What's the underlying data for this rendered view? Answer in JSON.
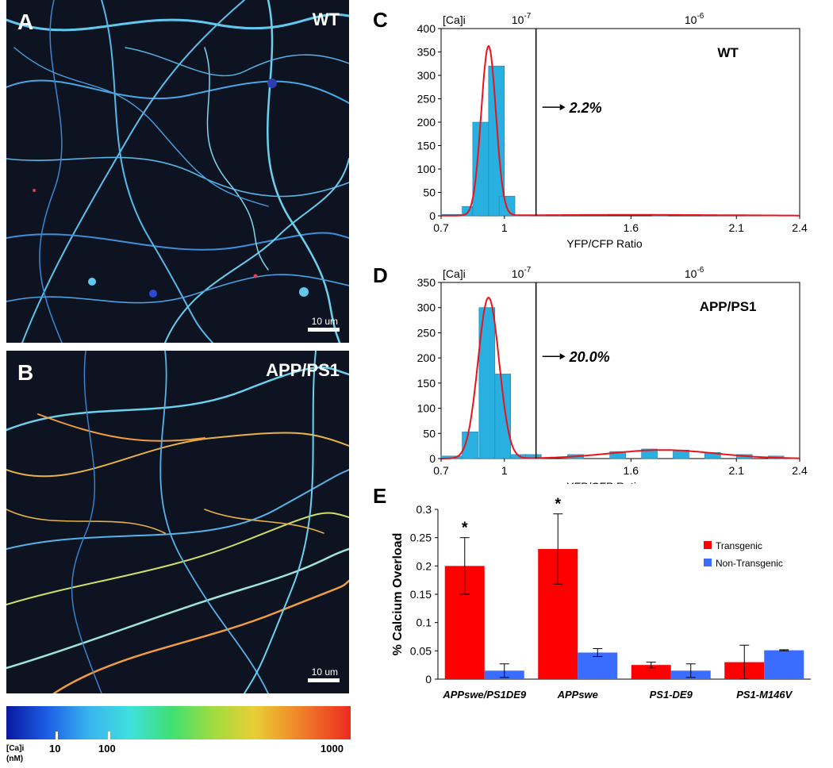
{
  "panels": {
    "a": {
      "letter": "A",
      "tag": "WT",
      "scale": "10 um"
    },
    "b": {
      "letter": "B",
      "tag": "APP/PS1",
      "scale": "10 um"
    },
    "c": {
      "letter": "C"
    },
    "d": {
      "letter": "D"
    },
    "e": {
      "letter": "E"
    }
  },
  "colorbar": {
    "unit_line1": "[Ca]i",
    "unit_line2": "(nM)",
    "ticks": [
      "10",
      "100",
      "1000"
    ]
  },
  "chart_data": [
    {
      "type": "bar",
      "panel": "C",
      "annotation_tag": "WT",
      "xlabel": "YFP/CFP Ratio",
      "top_axis_label": "[Ca]i",
      "top_ticks": [
        {
          "base": "10",
          "exp": "-7",
          "ratio": 1.08
        },
        {
          "base": "10",
          "exp": "-6",
          "ratio": 1.9
        }
      ],
      "xlim": [
        0.7,
        2.4
      ],
      "ylim": [
        0,
        400
      ],
      "xticks": [
        "0.7",
        "1",
        "1.6",
        "2.1",
        "2.4"
      ],
      "xtick_values": [
        0.7,
        1.0,
        1.6,
        2.1,
        2.4
      ],
      "yticks": [
        0,
        50,
        100,
        150,
        200,
        250,
        300,
        350,
        400
      ],
      "bin_width": 0.075,
      "bins": [
        {
          "x0": 0.7,
          "v": 3
        },
        {
          "x0": 0.775,
          "v": 3
        },
        {
          "x0": 0.8,
          "v": 20
        },
        {
          "x0": 0.85,
          "v": 200
        },
        {
          "x0": 0.925,
          "v": 320
        },
        {
          "x0": 0.975,
          "v": 42
        },
        {
          "x0": 1.05,
          "v": 2
        },
        {
          "x0": 1.7,
          "v": 3
        }
      ],
      "threshold": 1.15,
      "arrow_label": "2.2%",
      "curve": [
        {
          "mu": 0.925,
          "sigma": 0.035,
          "amp": 362
        },
        {
          "mu": 1.6,
          "sigma": 0.5,
          "amp": 2
        }
      ]
    },
    {
      "type": "bar",
      "panel": "D",
      "annotation_tag": "APP/PS1",
      "xlabel": "YFP/CFP Ratio",
      "top_axis_label": "[Ca]i",
      "top_ticks": [
        {
          "base": "10",
          "exp": "-7",
          "ratio": 1.08
        },
        {
          "base": "10",
          "exp": "-6",
          "ratio": 1.9
        }
      ],
      "xlim": [
        0.7,
        2.4
      ],
      "ylim": [
        0,
        350
      ],
      "xticks": [
        "0.7",
        "1",
        "1.6",
        "2.1",
        "2.4"
      ],
      "xtick_values": [
        0.7,
        1.0,
        1.6,
        2.1,
        2.4
      ],
      "yticks": [
        0,
        50,
        100,
        150,
        200,
        250,
        300,
        350
      ],
      "bin_width": 0.075,
      "bins": [
        {
          "x0": 0.7,
          "v": 5
        },
        {
          "x0": 0.775,
          "v": 5
        },
        {
          "x0": 0.8,
          "v": 53
        },
        {
          "x0": 0.88,
          "v": 300
        },
        {
          "x0": 0.955,
          "v": 168
        },
        {
          "x0": 1.03,
          "v": 8
        },
        {
          "x0": 1.1,
          "v": 8
        },
        {
          "x0": 1.3,
          "v": 8
        },
        {
          "x0": 1.5,
          "v": 14
        },
        {
          "x0": 1.65,
          "v": 19
        },
        {
          "x0": 1.8,
          "v": 17
        },
        {
          "x0": 1.95,
          "v": 12
        },
        {
          "x0": 2.1,
          "v": 8
        },
        {
          "x0": 2.25,
          "v": 5
        }
      ],
      "threshold": 1.15,
      "arrow_label": "20.0%",
      "curve": [
        {
          "mu": 0.925,
          "sigma": 0.05,
          "amp": 320
        },
        {
          "mu": 1.75,
          "sigma": 0.25,
          "amp": 17
        }
      ]
    },
    {
      "type": "bar",
      "panel": "E",
      "ylabel": "% Calcium Overload",
      "ylim": [
        0,
        0.3
      ],
      "yticks": [
        "0",
        "0.05",
        "0.1",
        "0.15",
        "0.2",
        "0.25",
        "0.3"
      ],
      "ytick_values": [
        0,
        0.05,
        0.1,
        0.15,
        0.2,
        0.25,
        0.3
      ],
      "categories": [
        "APPswe/PS1DE9",
        "APPswe",
        "PS1-DE9",
        "PS1-M146V"
      ],
      "series": [
        {
          "name": "Transgenic",
          "color": "#ff0000",
          "values": [
            0.2,
            0.23,
            0.025,
            0.03
          ],
          "errors": [
            0.05,
            0.062,
            0.005,
            0.03
          ]
        },
        {
          "name": "Non-Transgenic",
          "color": "#3a6cff",
          "values": [
            0.015,
            0.047,
            0.015,
            0.051
          ],
          "errors": [
            0.012,
            0.007,
            0.012,
            0.001
          ]
        }
      ],
      "significance": [
        "*",
        "*",
        "",
        ""
      ],
      "legend_position": "top-right"
    }
  ]
}
